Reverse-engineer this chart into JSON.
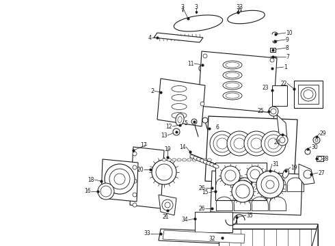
{
  "background_color": "#ffffff",
  "line_color": "#1a1a1a",
  "figsize": [
    4.9,
    3.6
  ],
  "dpi": 100,
  "label_fs": 5.8,
  "lw_main": 0.8,
  "lw_thin": 0.5,
  "lw_leader": 0.5
}
